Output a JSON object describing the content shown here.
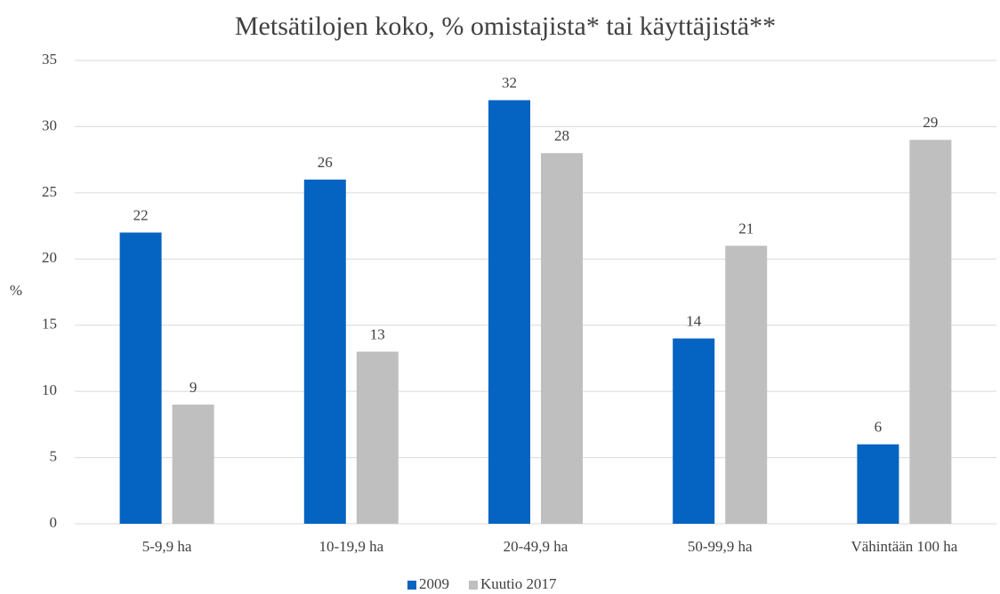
{
  "chart_data": {
    "type": "bar",
    "title": "Metsätilojen koko, % omistajista* tai käyttäjistä**",
    "ylabel": "%",
    "categories": [
      "5-9,9 ha",
      "10-19,9 ha",
      "20-49,9 ha",
      "50-99,9 ha",
      "Vähintään 100 ha"
    ],
    "series": [
      {
        "name": "2009",
        "color": "#0563c1",
        "values": [
          22,
          26,
          32,
          14,
          6
        ]
      },
      {
        "name": "Kuutio 2017",
        "color": "#bfbfbf",
        "values": [
          9,
          13,
          28,
          21,
          29
        ]
      }
    ],
    "ylim": [
      0,
      35
    ],
    "yticks": [
      0,
      5,
      10,
      15,
      20,
      25,
      30,
      35
    ],
    "grid": true,
    "legend": "bottom"
  }
}
